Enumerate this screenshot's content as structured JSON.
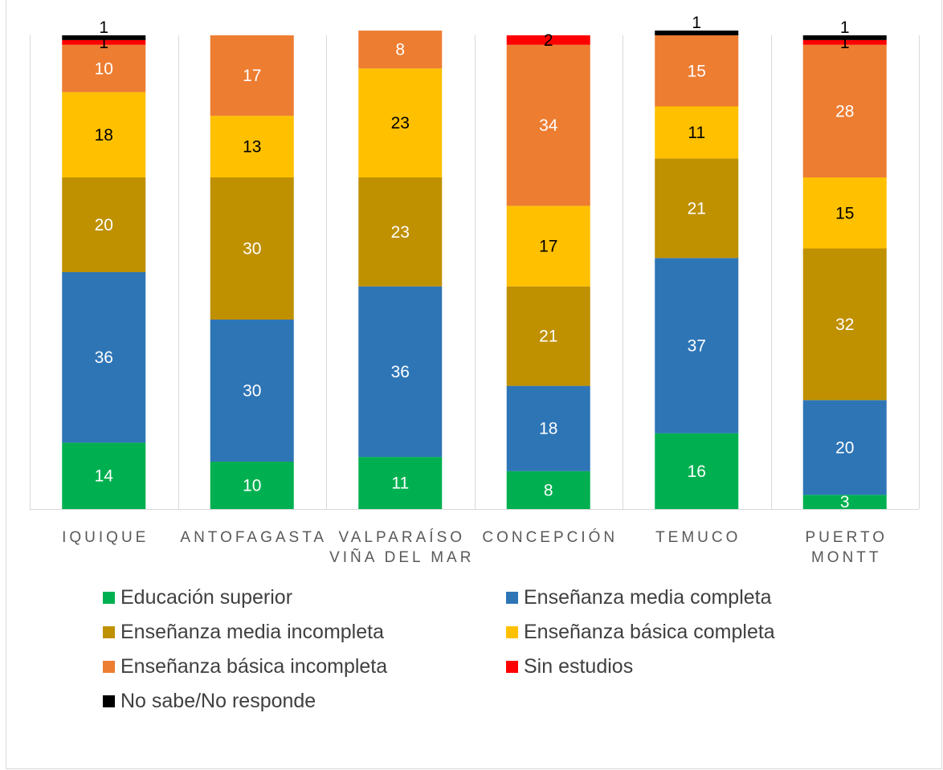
{
  "chart_data": {
    "type": "bar",
    "stacked": true,
    "categories": [
      [
        "IQUIQUE"
      ],
      [
        "ANTOFAGASTA"
      ],
      [
        "VALPARAÍSO",
        "VIÑA DEL MAR"
      ],
      [
        "CONCEPCIÓN"
      ],
      [
        "TEMUCO"
      ],
      [
        "PUERTO",
        "MONTT"
      ]
    ],
    "series": [
      {
        "name": "Educación superior",
        "color": "#00b050",
        "label_color": "#ffffff",
        "values": [
          14,
          10,
          11,
          8,
          16,
          3
        ]
      },
      {
        "name": "Enseñanza media completa",
        "color": "#2e75b6",
        "label_color": "#ffffff",
        "values": [
          36,
          30,
          36,
          18,
          37,
          20
        ]
      },
      {
        "name": "Enseñanza media incompleta",
        "color": "#bf9000",
        "label_color": "#ffffff",
        "values": [
          20,
          30,
          23,
          21,
          21,
          32
        ]
      },
      {
        "name": "Enseñanza básica completa",
        "color": "#ffc000",
        "label_color": "#000000",
        "values": [
          18,
          13,
          23,
          17,
          11,
          15
        ]
      },
      {
        "name": "Enseñanza básica incompleta",
        "color": "#ed7d31",
        "label_color": "#ffffff",
        "values": [
          10,
          17,
          8,
          34,
          15,
          28
        ]
      },
      {
        "name": "Sin estudios",
        "color": "#ff0000",
        "label_color": "#000000",
        "values": [
          1,
          0,
          0,
          2,
          0,
          1
        ]
      },
      {
        "name": "No sabe/No responde",
        "color": "#000000",
        "label_color": "#000000",
        "values": [
          1,
          0,
          0,
          0,
          1,
          1
        ]
      }
    ],
    "ylim": [
      0,
      100
    ],
    "grid": false,
    "legend_position": "bottom"
  }
}
